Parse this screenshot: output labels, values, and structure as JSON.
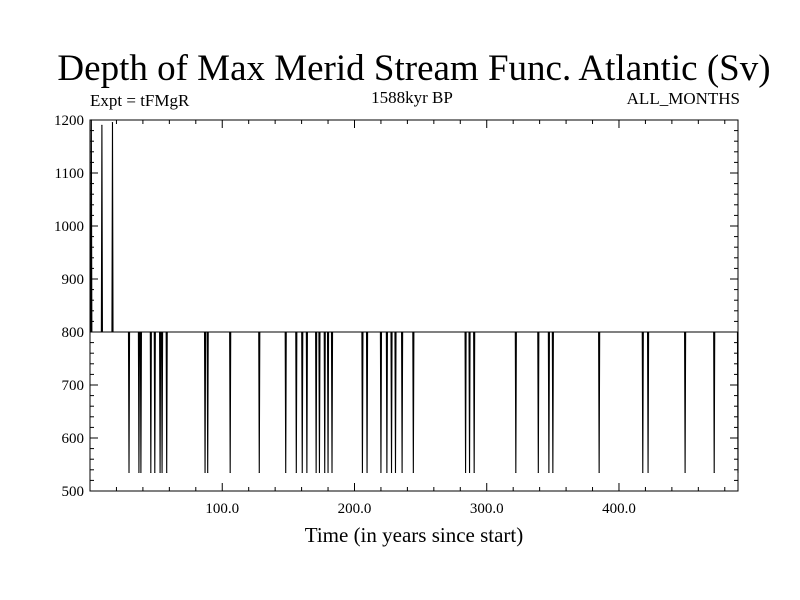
{
  "chart_data": {
    "type": "line",
    "title": "Depth of Max Merid Stream Func. Atlantic (Sv)",
    "subtitle_left": "Expt = tFMgR",
    "subtitle_center": "1588kyr BP",
    "subtitle_right": "ALL_MONTHS",
    "xlabel": "Time (in years since start)",
    "ylabel": "",
    "xlim": [
      0,
      490
    ],
    "ylim": [
      500,
      1200
    ],
    "xticks": [
      100,
      200,
      300,
      400
    ],
    "xtick_labels": [
      "100.0",
      "200.0",
      "300.0",
      "400.0"
    ],
    "yticks": [
      500,
      600,
      700,
      800,
      900,
      1000,
      1100,
      1200
    ],
    "ytick_labels": [
      "500",
      "600",
      "700",
      "800",
      "900",
      "1000",
      "1100",
      "1200"
    ],
    "grid": false,
    "baseline": 800,
    "series": [
      {
        "color": "#000000",
        "events": [
          {
            "x": 1,
            "y": 1200
          },
          {
            "x": 9,
            "y": 1190
          },
          {
            "x": 17,
            "y": 1195
          },
          {
            "x": 29.5,
            "y": 535
          },
          {
            "x": 37,
            "y": 535
          },
          {
            "x": 38.5,
            "y": 535
          },
          {
            "x": 46,
            "y": 535
          },
          {
            "x": 49,
            "y": 535
          },
          {
            "x": 53,
            "y": 535
          },
          {
            "x": 54.5,
            "y": 535
          },
          {
            "x": 58,
            "y": 535
          },
          {
            "x": 87,
            "y": 535
          },
          {
            "x": 89,
            "y": 535
          },
          {
            "x": 106,
            "y": 535
          },
          {
            "x": 128,
            "y": 535
          },
          {
            "x": 148,
            "y": 535
          },
          {
            "x": 156,
            "y": 535
          },
          {
            "x": 160.5,
            "y": 535
          },
          {
            "x": 164,
            "y": 535
          },
          {
            "x": 171,
            "y": 535
          },
          {
            "x": 173.5,
            "y": 535
          },
          {
            "x": 177.5,
            "y": 535
          },
          {
            "x": 180,
            "y": 535
          },
          {
            "x": 183,
            "y": 535
          },
          {
            "x": 206,
            "y": 535
          },
          {
            "x": 209.5,
            "y": 535
          },
          {
            "x": 220,
            "y": 535
          },
          {
            "x": 224.5,
            "y": 535
          },
          {
            "x": 228,
            "y": 535
          },
          {
            "x": 231,
            "y": 535
          },
          {
            "x": 236,
            "y": 535
          },
          {
            "x": 244.5,
            "y": 535
          },
          {
            "x": 284,
            "y": 535
          },
          {
            "x": 287,
            "y": 535
          },
          {
            "x": 290.5,
            "y": 535
          },
          {
            "x": 322,
            "y": 535
          },
          {
            "x": 339,
            "y": 535
          },
          {
            "x": 347,
            "y": 535
          },
          {
            "x": 350,
            "y": 535
          },
          {
            "x": 385,
            "y": 535
          },
          {
            "x": 418,
            "y": 535
          },
          {
            "x": 422,
            "y": 535
          },
          {
            "x": 450,
            "y": 535
          },
          {
            "x": 472,
            "y": 535
          },
          {
            "x": 490,
            "y": 535
          }
        ]
      }
    ]
  }
}
